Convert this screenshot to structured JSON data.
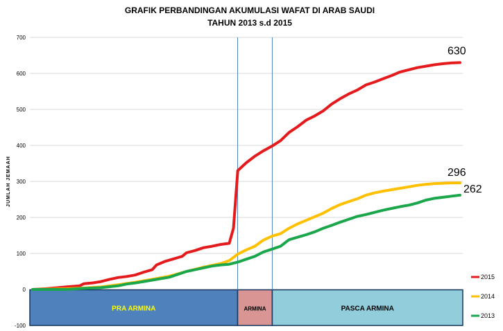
{
  "chart_data": {
    "type": "line",
    "title_line1": "GRAFIK PERBANDINGAN AKUMULASI WAFAT DI ARAB SAUDI",
    "title_line2": "TAHUN  2013 s.d 2015",
    "ylabel": "JUMLAH JEMAAH",
    "ylim": [
      -100,
      700
    ],
    "yticks": [
      -100,
      0,
      100,
      200,
      300,
      400,
      500,
      600,
      700
    ],
    "x_count": 100,
    "grid": "horizontal",
    "legend_position": "bottom-right",
    "phases": [
      {
        "label": "PRA ARMINA",
        "start": 0,
        "end": 48,
        "color": "#4f81bd",
        "text_color": "#ffff00"
      },
      {
        "label": "ARMINA",
        "start": 48,
        "end": 56,
        "color": "#d99594",
        "text_color": "#000000"
      },
      {
        "label": "PASCA ARMINA",
        "start": 56,
        "end": 100,
        "color": "#92cddc",
        "text_color": "#000000"
      }
    ],
    "series": [
      {
        "name": "2015",
        "color": "#e41a1c",
        "end_label": "630",
        "points": [
          [
            0,
            0
          ],
          [
            3,
            2
          ],
          [
            6,
            5
          ],
          [
            9,
            8
          ],
          [
            11,
            10
          ],
          [
            12,
            16
          ],
          [
            14,
            18
          ],
          [
            16,
            22
          ],
          [
            18,
            28
          ],
          [
            20,
            33
          ],
          [
            22,
            36
          ],
          [
            24,
            40
          ],
          [
            26,
            48
          ],
          [
            28,
            55
          ],
          [
            29,
            68
          ],
          [
            31,
            78
          ],
          [
            33,
            85
          ],
          [
            35,
            92
          ],
          [
            36,
            102
          ],
          [
            38,
            108
          ],
          [
            40,
            116
          ],
          [
            42,
            120
          ],
          [
            44,
            125
          ],
          [
            46,
            128
          ],
          [
            47,
            170
          ],
          [
            48,
            330
          ],
          [
            50,
            352
          ],
          [
            52,
            370
          ],
          [
            54,
            385
          ],
          [
            56,
            398
          ],
          [
            58,
            413
          ],
          [
            60,
            436
          ],
          [
            62,
            452
          ],
          [
            64,
            470
          ],
          [
            66,
            482
          ],
          [
            68,
            496
          ],
          [
            70,
            515
          ],
          [
            72,
            530
          ],
          [
            74,
            543
          ],
          [
            76,
            554
          ],
          [
            78,
            568
          ],
          [
            80,
            576
          ],
          [
            82,
            585
          ],
          [
            84,
            594
          ],
          [
            86,
            604
          ],
          [
            88,
            610
          ],
          [
            90,
            616
          ],
          [
            92,
            620
          ],
          [
            94,
            624
          ],
          [
            96,
            627
          ],
          [
            98,
            629
          ],
          [
            100,
            630
          ]
        ]
      },
      {
        "name": "2014",
        "color": "#ffc000",
        "end_label": "296",
        "points": [
          [
            0,
            0
          ],
          [
            4,
            1
          ],
          [
            8,
            2
          ],
          [
            12,
            4
          ],
          [
            16,
            7
          ],
          [
            20,
            13
          ],
          [
            24,
            20
          ],
          [
            28,
            28
          ],
          [
            32,
            37
          ],
          [
            36,
            50
          ],
          [
            40,
            62
          ],
          [
            44,
            72
          ],
          [
            46,
            80
          ],
          [
            48,
            98
          ],
          [
            50,
            110
          ],
          [
            52,
            120
          ],
          [
            54,
            137
          ],
          [
            56,
            148
          ],
          [
            58,
            155
          ],
          [
            60,
            170
          ],
          [
            62,
            182
          ],
          [
            64,
            192
          ],
          [
            66,
            202
          ],
          [
            68,
            212
          ],
          [
            70,
            225
          ],
          [
            72,
            236
          ],
          [
            74,
            244
          ],
          [
            76,
            252
          ],
          [
            78,
            262
          ],
          [
            80,
            268
          ],
          [
            82,
            273
          ],
          [
            84,
            277
          ],
          [
            86,
            281
          ],
          [
            88,
            285
          ],
          [
            90,
            289
          ],
          [
            92,
            292
          ],
          [
            94,
            294
          ],
          [
            96,
            295
          ],
          [
            98,
            296
          ],
          [
            100,
            296
          ]
        ]
      },
      {
        "name": "2013",
        "color": "#1aa64a",
        "end_label": "262",
        "points": [
          [
            0,
            0
          ],
          [
            4,
            0
          ],
          [
            8,
            0
          ],
          [
            12,
            3
          ],
          [
            16,
            5
          ],
          [
            20,
            10
          ],
          [
            22,
            15
          ],
          [
            24,
            18
          ],
          [
            26,
            22
          ],
          [
            28,
            26
          ],
          [
            30,
            30
          ],
          [
            32,
            34
          ],
          [
            34,
            42
          ],
          [
            36,
            50
          ],
          [
            38,
            55
          ],
          [
            40,
            60
          ],
          [
            42,
            65
          ],
          [
            44,
            68
          ],
          [
            46,
            70
          ],
          [
            48,
            76
          ],
          [
            50,
            84
          ],
          [
            52,
            92
          ],
          [
            54,
            104
          ],
          [
            56,
            112
          ],
          [
            58,
            120
          ],
          [
            60,
            138
          ],
          [
            62,
            145
          ],
          [
            64,
            152
          ],
          [
            66,
            160
          ],
          [
            68,
            170
          ],
          [
            70,
            178
          ],
          [
            72,
            187
          ],
          [
            74,
            195
          ],
          [
            76,
            203
          ],
          [
            78,
            208
          ],
          [
            80,
            214
          ],
          [
            82,
            220
          ],
          [
            84,
            225
          ],
          [
            86,
            230
          ],
          [
            88,
            234
          ],
          [
            90,
            240
          ],
          [
            92,
            248
          ],
          [
            94,
            253
          ],
          [
            96,
            256
          ],
          [
            98,
            259
          ],
          [
            100,
            262
          ]
        ]
      }
    ]
  }
}
